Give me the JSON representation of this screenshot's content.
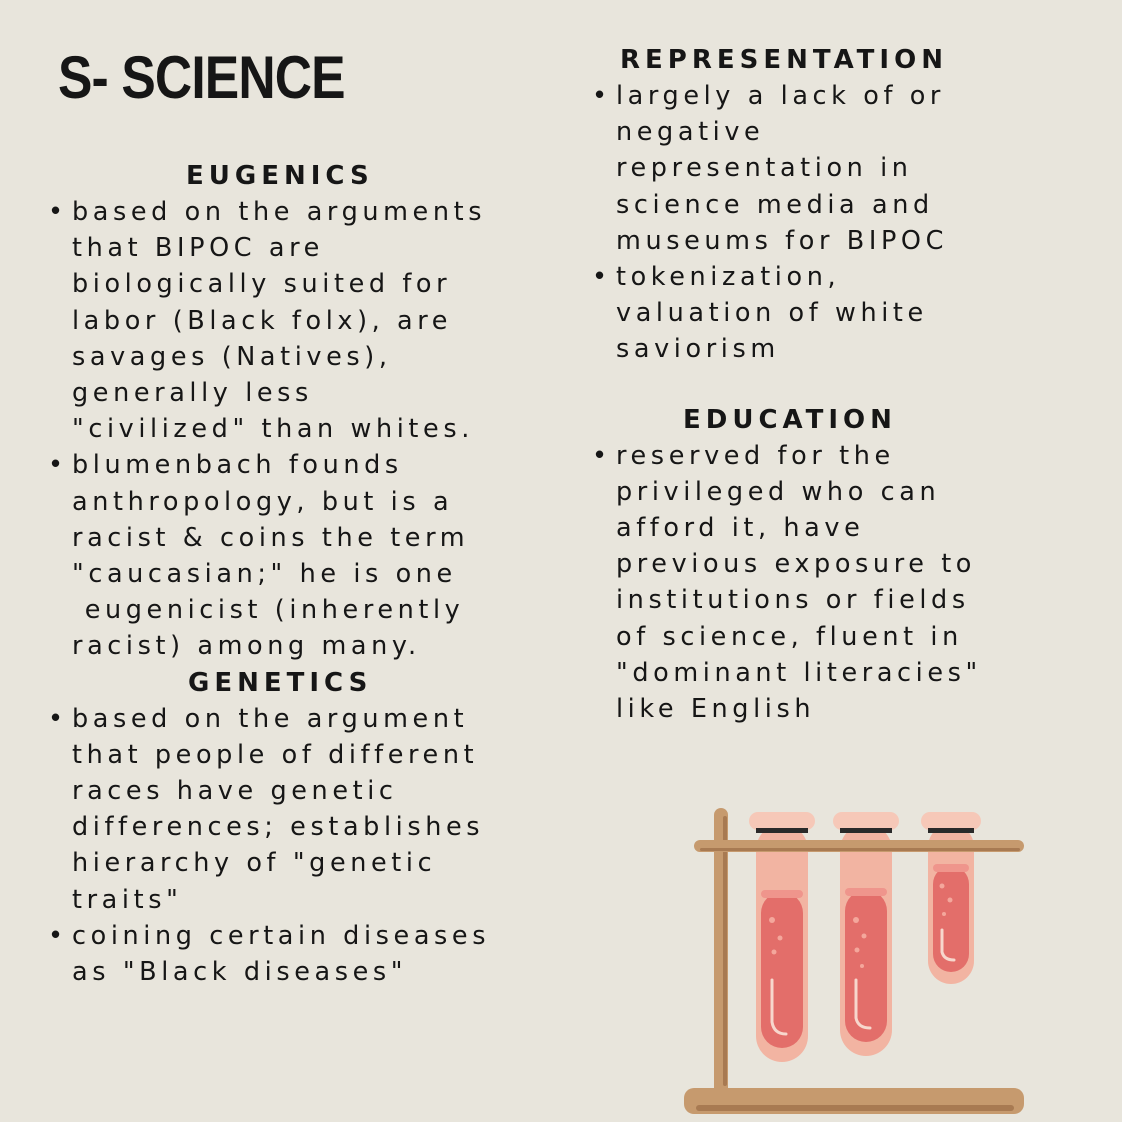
{
  "title": "S- SCIENCE",
  "bullet_char": "•",
  "sections": {
    "eugenics": {
      "heading": "EUGENICS",
      "items": [
        "based on the arguments\nthat BIPOC are\nbiologically suited for\nlabor (Black folx), are\nsavages (Natives),\ngenerally less\n\"civilized\" than whites.",
        "blumenbach founds\nanthropology, but is a\nracist & coins the term\n\"caucasian;\" he is one\n eugenicist (inherently\nracist) among many."
      ]
    },
    "genetics": {
      "heading": "GENETICS",
      "items": [
        "based on the argument\nthat people of different\nraces have genetic\ndifferences; establishes\nhierarchy of \"genetic\ntraits\"",
        "coining certain diseases\nas \"Black diseases\""
      ]
    },
    "representation": {
      "heading": "REPRESENTATION",
      "items": [
        "largely a lack of or\nnegative\nrepresentation in\nscience media and\nmuseums for BIPOC",
        "tokenization,\nvaluation of white\nsaviorism"
      ]
    },
    "education": {
      "heading": "EDUCATION",
      "items": [
        "reserved for the\nprivileged who can\nafford it, have\nprevious exposure to\ninstitutions or fields\nof science, fluent in\n\"dominant literacies\"\nlike English"
      ]
    }
  },
  "illustration": {
    "icon": "test-tube-rack-icon",
    "colors": {
      "stand": "#c69a6e",
      "stand_shadow": "#a87a52",
      "tube": "#f2b4a2",
      "tube_rim": "#f6c8b8",
      "liquid": "#e36e6a",
      "band": "#2a2a2a"
    }
  }
}
